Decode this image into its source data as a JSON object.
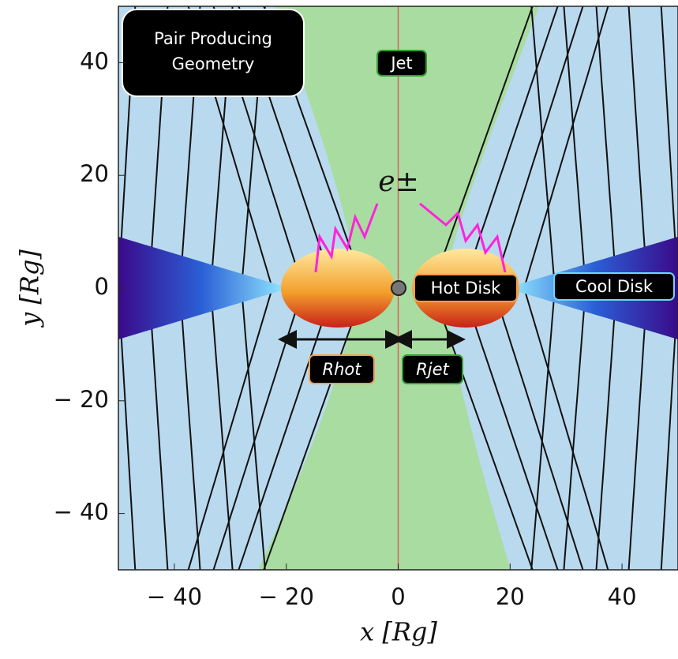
{
  "chart_data": {
    "type": "schematic",
    "title": "Pair Producing Geometry",
    "x_label": "x [Rg]",
    "y_label": "y [Rg]",
    "xlim": [
      -50,
      50
    ],
    "ylim": [
      -50,
      50
    ],
    "xticks": [
      {
        "value": -40,
        "label": "− 40"
      },
      {
        "value": -20,
        "label": "− 20"
      },
      0,
      20,
      40
    ],
    "yticks": [
      40,
      20,
      0,
      {
        "value": -20,
        "label": "− 20"
      },
      {
        "value": -40,
        "label": "− 40"
      }
    ],
    "annotations": {
      "jet": "Jet",
      "pairs": "e±",
      "hot_disk": "Hot Disk",
      "cool_disk": "Cool Disk",
      "r_hot": "Rhot",
      "r_jet": "Rjet"
    }
  }
}
